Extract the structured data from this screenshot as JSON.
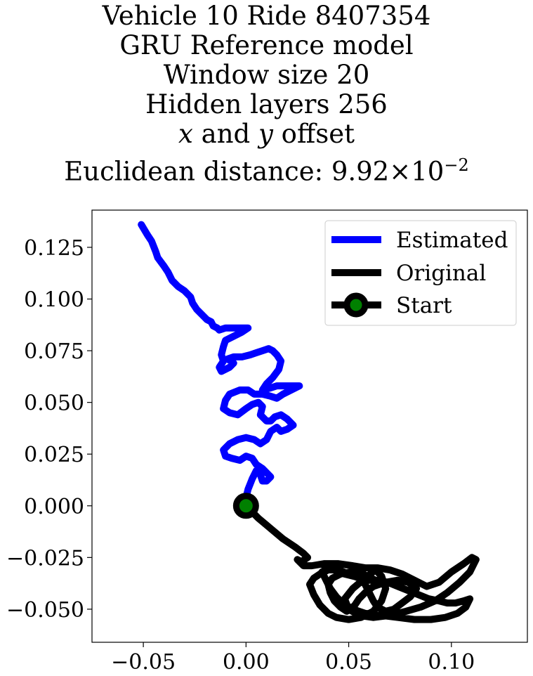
{
  "chart_data": {
    "type": "line",
    "title_lines": [
      "Vehicle 10 Ride 8407354",
      "GRU Reference model",
      "Window size 20",
      "Hidden layers 256",
      "x and y offset",
      "Euclidean distance: 9.92×10⁻²"
    ],
    "title": {
      "line1": "Vehicle 10 Ride 8407354",
      "line2": "GRU Reference model",
      "line3": "Window size 20",
      "line4": "Hidden layers 256",
      "line5_var_x": "x",
      "line5_and": " and ",
      "line5_var_y": "y",
      "line5_rest": " offset",
      "line6_prefix": "Euclidean distance: 9.92",
      "line6_times": "×",
      "line6_base": "10",
      "line6_exp": "−2"
    },
    "xlabel": "",
    "ylabel": "",
    "xlim": [
      -0.075,
      0.137
    ],
    "ylim": [
      -0.066,
      0.143
    ],
    "x_ticks": [
      -0.05,
      0.0,
      0.05,
      0.1
    ],
    "x_tick_labels": [
      "−0.05",
      "0.00",
      "0.05",
      "0.10"
    ],
    "y_ticks": [
      -0.05,
      -0.025,
      0.0,
      0.025,
      0.05,
      0.075,
      0.1,
      0.125
    ],
    "y_tick_labels": [
      "−0.050",
      "−0.025",
      "0.000",
      "0.025",
      "0.050",
      "0.075",
      "0.100",
      "0.125"
    ],
    "grid": false,
    "legend_position": "top-right",
    "series": [
      {
        "name": "Estimated",
        "color": "#0000ff",
        "x": [
          -0.051,
          -0.048,
          -0.046,
          -0.044,
          -0.043,
          -0.04,
          -0.038,
          -0.036,
          -0.033,
          -0.03,
          -0.027,
          -0.026,
          -0.024,
          -0.022,
          -0.02,
          -0.019,
          -0.017,
          -0.016,
          -0.014,
          -0.013,
          -0.01,
          -0.007,
          -0.004,
          -0.001,
          0.001,
          -0.002,
          -0.006,
          -0.01,
          -0.011,
          -0.012,
          -0.011,
          -0.013,
          -0.012,
          -0.008,
          -0.006,
          -0.009,
          -0.006,
          -0.002,
          0.002,
          0.005,
          0.008,
          0.011,
          0.013,
          0.015,
          0.017,
          0.016,
          0.013,
          0.01,
          0.008,
          0.012,
          0.015,
          0.019,
          0.023,
          0.026,
          0.022,
          0.018,
          0.015,
          0.012,
          0.008,
          0.004,
          0.001,
          -0.003,
          -0.008,
          -0.01,
          -0.011,
          -0.008,
          -0.004,
          0.0,
          0.003,
          0.006,
          0.008,
          0.007,
          0.01,
          0.012,
          0.014,
          0.017,
          0.02,
          0.023,
          0.02,
          0.017,
          0.015,
          0.012,
          0.01,
          0.007,
          0.004,
          0.0,
          -0.004,
          -0.008,
          -0.011,
          -0.01,
          -0.007,
          -0.003,
          0.0,
          0.003,
          0.005,
          0.008,
          0.01,
          0.012,
          0.01,
          0.008,
          0.007,
          0.005,
          0.003,
          0.001,
          0.0
        ],
        "y": [
          0.136,
          0.131,
          0.128,
          0.123,
          0.12,
          0.116,
          0.113,
          0.109,
          0.106,
          0.104,
          0.101,
          0.098,
          0.095,
          0.093,
          0.091,
          0.09,
          0.089,
          0.087,
          0.086,
          0.085,
          0.086,
          0.086,
          0.086,
          0.086,
          0.086,
          0.084,
          0.082,
          0.08,
          0.077,
          0.073,
          0.07,
          0.067,
          0.065,
          0.067,
          0.069,
          0.071,
          0.072,
          0.072,
          0.073,
          0.074,
          0.075,
          0.076,
          0.075,
          0.073,
          0.07,
          0.066,
          0.062,
          0.059,
          0.056,
          0.057,
          0.058,
          0.058,
          0.058,
          0.058,
          0.056,
          0.054,
          0.052,
          0.053,
          0.054,
          0.054,
          0.056,
          0.056,
          0.054,
          0.051,
          0.047,
          0.045,
          0.044,
          0.047,
          0.049,
          0.05,
          0.048,
          0.044,
          0.041,
          0.041,
          0.043,
          0.044,
          0.042,
          0.039,
          0.037,
          0.036,
          0.038,
          0.036,
          0.032,
          0.03,
          0.032,
          0.033,
          0.032,
          0.03,
          0.027,
          0.024,
          0.023,
          0.022,
          0.024,
          0.023,
          0.02,
          0.018,
          0.016,
          0.014,
          0.012,
          0.012,
          0.015,
          0.017,
          0.013,
          0.008,
          0.004
        ]
      },
      {
        "name": "Original",
        "color": "#000000",
        "x": [
          0.0,
          0.006,
          0.012,
          0.018,
          0.024,
          0.028,
          0.03,
          0.027,
          0.025,
          0.028,
          0.032,
          0.038,
          0.045,
          0.052,
          0.058,
          0.064,
          0.07,
          0.076,
          0.082,
          0.088,
          0.094,
          0.1,
          0.106,
          0.11,
          0.112,
          0.109,
          0.104,
          0.098,
          0.092,
          0.085,
          0.078,
          0.07,
          0.062,
          0.055,
          0.05,
          0.048,
          0.052,
          0.058,
          0.063,
          0.066,
          0.068,
          0.066,
          0.062,
          0.056,
          0.05,
          0.044,
          0.04,
          0.036,
          0.033,
          0.031,
          0.033,
          0.036,
          0.04,
          0.044,
          0.048,
          0.052,
          0.056,
          0.06,
          0.064,
          0.069,
          0.074,
          0.079,
          0.084,
          0.089,
          0.094,
          0.098,
          0.102,
          0.106,
          0.109,
          0.107,
          0.103,
          0.097,
          0.09,
          0.082,
          0.074,
          0.066,
          0.058,
          0.052,
          0.047,
          0.044,
          0.041,
          0.039,
          0.037,
          0.04,
          0.045,
          0.05,
          0.055,
          0.058,
          0.06,
          0.062,
          0.064,
          0.068,
          0.072,
          0.076,
          0.08,
          0.083,
          0.079,
          0.074,
          0.068,
          0.062,
          0.058,
          0.055,
          0.053,
          0.051,
          0.049,
          0.046,
          0.043,
          0.041,
          0.04,
          0.042,
          0.046,
          0.051,
          0.057,
          0.063
        ],
        "y": [
          0.0,
          -0.006,
          -0.011,
          -0.016,
          -0.02,
          -0.023,
          -0.025,
          -0.027,
          -0.026,
          -0.029,
          -0.029,
          -0.028,
          -0.028,
          -0.029,
          -0.03,
          -0.03,
          -0.031,
          -0.033,
          -0.036,
          -0.039,
          -0.037,
          -0.032,
          -0.028,
          -0.025,
          -0.026,
          -0.032,
          -0.037,
          -0.042,
          -0.046,
          -0.049,
          -0.051,
          -0.053,
          -0.054,
          -0.053,
          -0.05,
          -0.045,
          -0.04,
          -0.035,
          -0.031,
          -0.034,
          -0.04,
          -0.046,
          -0.051,
          -0.054,
          -0.055,
          -0.054,
          -0.052,
          -0.048,
          -0.043,
          -0.038,
          -0.035,
          -0.033,
          -0.031,
          -0.031,
          -0.033,
          -0.034,
          -0.035,
          -0.036,
          -0.036,
          -0.037,
          -0.039,
          -0.041,
          -0.043,
          -0.045,
          -0.046,
          -0.047,
          -0.047,
          -0.046,
          -0.045,
          -0.049,
          -0.052,
          -0.054,
          -0.055,
          -0.055,
          -0.054,
          -0.053,
          -0.052,
          -0.05,
          -0.047,
          -0.044,
          -0.04,
          -0.036,
          -0.032,
          -0.03,
          -0.031,
          -0.033,
          -0.035,
          -0.038,
          -0.042,
          -0.046,
          -0.049,
          -0.051,
          -0.05,
          -0.047,
          -0.044,
          -0.04,
          -0.037,
          -0.036,
          -0.037,
          -0.039,
          -0.042,
          -0.045,
          -0.048,
          -0.05,
          -0.051,
          -0.049,
          -0.046,
          -0.042,
          -0.038,
          -0.035,
          -0.033,
          -0.032,
          -0.033,
          -0.036
        ]
      },
      {
        "name": "Start",
        "color": "#000000",
        "marker_face_color": "#008000",
        "x": [
          0.0
        ],
        "y": [
          0.0
        ]
      }
    ]
  }
}
